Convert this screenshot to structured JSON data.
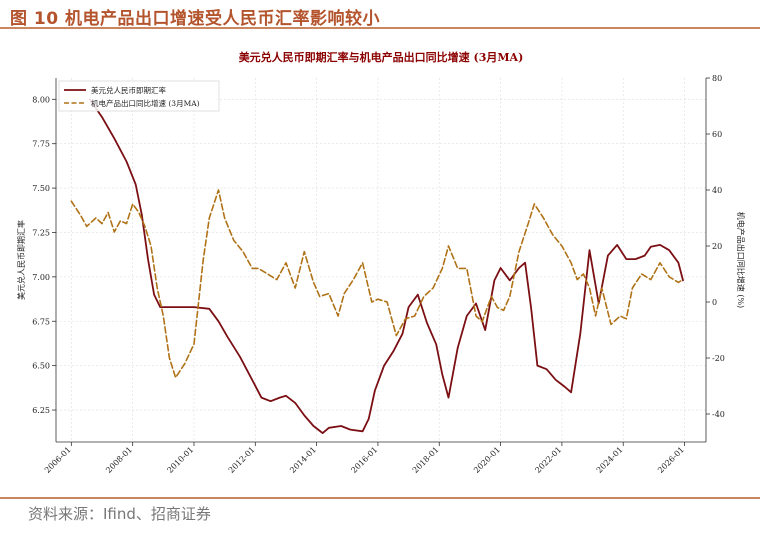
{
  "figure": {
    "title": "图 10 机电产品出口增速受人民币汇率影响较小",
    "source": "资料来源：Ifind、招商证券"
  },
  "colors": {
    "accent": "#b4542d",
    "rule": "#c9865f",
    "fx_series": "#7b0f14",
    "export_series": "#b07216",
    "title_text": "#8b0000"
  },
  "chart_data": {
    "type": "line",
    "title": "美元兑人民币即期汇率与机电产品出口同比增速 (3月MA)",
    "ylabel_left": "美元兑人民币即期汇率",
    "ylabel_right": "机电产品出口同比增速 (%)",
    "xlabel": "",
    "ylim_left": [
      6.07,
      8.12
    ],
    "ylim_right": [
      -50,
      80
    ],
    "xlim": [
      2005.5,
      2026.7
    ],
    "grid": true,
    "legend_position": "top-left",
    "x_ticks": [
      "2006-01",
      "2008-01",
      "2010-01",
      "2012-01",
      "2014-01",
      "2016-01",
      "2018-01",
      "2020-01",
      "2022-01",
      "2024-01",
      "2026-01"
    ],
    "y_left_ticks": [
      "6.25",
      "6.50",
      "6.75",
      "7.00",
      "7.25",
      "7.50",
      "7.75",
      "8.00"
    ],
    "y_right_ticks": [
      "-40",
      "-20",
      "0",
      "20",
      "40",
      "60",
      "80"
    ],
    "series": [
      {
        "name": "美元兑人民币即期汇率",
        "axis": "left",
        "style": "solid",
        "points": [
          [
            2006.6,
            8.0
          ],
          [
            2007.0,
            7.9
          ],
          [
            2007.4,
            7.78
          ],
          [
            2007.8,
            7.65
          ],
          [
            2008.1,
            7.52
          ],
          [
            2008.3,
            7.35
          ],
          [
            2008.5,
            7.1
          ],
          [
            2008.7,
            6.9
          ],
          [
            2008.9,
            6.83
          ],
          [
            2009.3,
            6.83
          ],
          [
            2010.0,
            6.83
          ],
          [
            2010.5,
            6.82
          ],
          [
            2010.8,
            6.75
          ],
          [
            2011.1,
            6.66
          ],
          [
            2011.5,
            6.55
          ],
          [
            2011.9,
            6.42
          ],
          [
            2012.2,
            6.32
          ],
          [
            2012.5,
            6.3
          ],
          [
            2012.8,
            6.32
          ],
          [
            2013.0,
            6.33
          ],
          [
            2013.3,
            6.29
          ],
          [
            2013.6,
            6.22
          ],
          [
            2013.9,
            6.16
          ],
          [
            2014.2,
            6.12
          ],
          [
            2014.4,
            6.15
          ],
          [
            2014.8,
            6.16
          ],
          [
            2015.1,
            6.14
          ],
          [
            2015.5,
            6.13
          ],
          [
            2015.7,
            6.2
          ],
          [
            2015.9,
            6.36
          ],
          [
            2016.2,
            6.5
          ],
          [
            2016.5,
            6.58
          ],
          [
            2016.8,
            6.68
          ],
          [
            2017.0,
            6.83
          ],
          [
            2017.3,
            6.9
          ],
          [
            2017.6,
            6.74
          ],
          [
            2017.9,
            6.62
          ],
          [
            2018.1,
            6.45
          ],
          [
            2018.3,
            6.32
          ],
          [
            2018.6,
            6.6
          ],
          [
            2018.9,
            6.78
          ],
          [
            2019.2,
            6.85
          ],
          [
            2019.5,
            6.7
          ],
          [
            2019.8,
            6.98
          ],
          [
            2020.0,
            7.05
          ],
          [
            2020.3,
            6.98
          ],
          [
            2020.6,
            7.05
          ],
          [
            2020.8,
            7.08
          ],
          [
            2021.0,
            6.82
          ],
          [
            2021.2,
            6.5
          ],
          [
            2021.5,
            6.48
          ],
          [
            2021.8,
            6.42
          ],
          [
            2022.1,
            6.38
          ],
          [
            2022.3,
            6.35
          ],
          [
            2022.6,
            6.68
          ],
          [
            2022.9,
            7.15
          ],
          [
            2023.2,
            6.85
          ],
          [
            2023.5,
            7.12
          ],
          [
            2023.8,
            7.18
          ],
          [
            2024.1,
            7.1
          ],
          [
            2024.4,
            7.1
          ],
          [
            2024.7,
            7.12
          ],
          [
            2024.9,
            7.17
          ],
          [
            2025.2,
            7.18
          ],
          [
            2025.5,
            7.15
          ],
          [
            2025.8,
            7.08
          ],
          [
            2025.95,
            6.98
          ]
        ]
      },
      {
        "name": "机电产品出口同比增速 (3月MA)",
        "axis": "right",
        "style": "dashed",
        "points": [
          [
            2006.0,
            36
          ],
          [
            2006.3,
            31
          ],
          [
            2006.5,
            27
          ],
          [
            2006.8,
            30
          ],
          [
            2007.0,
            28
          ],
          [
            2007.2,
            32
          ],
          [
            2007.4,
            25
          ],
          [
            2007.6,
            29
          ],
          [
            2007.8,
            28
          ],
          [
            2008.0,
            35
          ],
          [
            2008.2,
            32
          ],
          [
            2008.4,
            27
          ],
          [
            2008.6,
            20
          ],
          [
            2008.8,
            5
          ],
          [
            2009.0,
            -5
          ],
          [
            2009.2,
            -20
          ],
          [
            2009.4,
            -27
          ],
          [
            2009.7,
            -22
          ],
          [
            2010.0,
            -15
          ],
          [
            2010.3,
            15
          ],
          [
            2010.5,
            30
          ],
          [
            2010.8,
            40
          ],
          [
            2011.0,
            30
          ],
          [
            2011.3,
            22
          ],
          [
            2011.6,
            18
          ],
          [
            2011.9,
            12
          ],
          [
            2012.1,
            12
          ],
          [
            2012.4,
            10
          ],
          [
            2012.7,
            8
          ],
          [
            2013.0,
            14
          ],
          [
            2013.3,
            5
          ],
          [
            2013.6,
            18
          ],
          [
            2013.9,
            7
          ],
          [
            2014.1,
            2
          ],
          [
            2014.4,
            3
          ],
          [
            2014.7,
            -5
          ],
          [
            2014.9,
            3
          ],
          [
            2015.2,
            8
          ],
          [
            2015.5,
            14
          ],
          [
            2015.8,
            0
          ],
          [
            2016.0,
            1
          ],
          [
            2016.3,
            0
          ],
          [
            2016.6,
            -12
          ],
          [
            2016.9,
            -6
          ],
          [
            2017.2,
            -5
          ],
          [
            2017.5,
            2
          ],
          [
            2017.8,
            5
          ],
          [
            2018.1,
            12
          ],
          [
            2018.3,
            20
          ],
          [
            2018.6,
            12
          ],
          [
            2018.9,
            12
          ],
          [
            2019.2,
            -5
          ],
          [
            2019.4,
            -7
          ],
          [
            2019.7,
            2
          ],
          [
            2019.9,
            -2
          ],
          [
            2020.1,
            -3
          ],
          [
            2020.3,
            2
          ],
          [
            2020.6,
            18
          ],
          [
            2020.9,
            28
          ],
          [
            2021.1,
            35
          ],
          [
            2021.4,
            30
          ],
          [
            2021.7,
            24
          ],
          [
            2022.0,
            20
          ],
          [
            2022.3,
            14
          ],
          [
            2022.5,
            8
          ],
          [
            2022.7,
            10
          ],
          [
            2022.9,
            5
          ],
          [
            2023.1,
            -5
          ],
          [
            2023.3,
            5
          ],
          [
            2023.6,
            -8
          ],
          [
            2023.9,
            -5
          ],
          [
            2024.1,
            -6
          ],
          [
            2024.3,
            5
          ],
          [
            2024.6,
            10
          ],
          [
            2024.9,
            8
          ],
          [
            2025.2,
            14
          ],
          [
            2025.5,
            9
          ],
          [
            2025.8,
            7
          ],
          [
            2025.95,
            8
          ]
        ]
      }
    ]
  }
}
